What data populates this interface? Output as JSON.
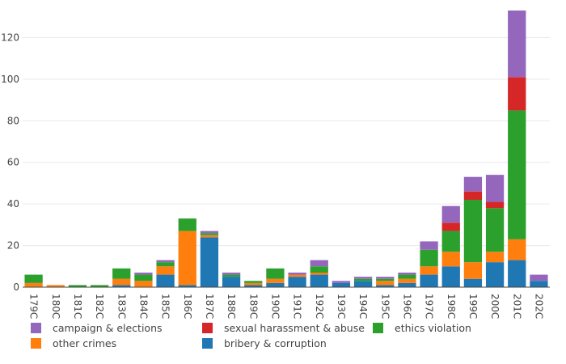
{
  "chart_data": {
    "type": "bar",
    "stacked": true,
    "title": "",
    "xlabel": "",
    "ylabel": "",
    "ylim": [
      0,
      140
    ],
    "yticks": [
      0,
      20,
      40,
      60,
      80,
      100,
      120,
      140
    ],
    "grid": true,
    "legend_position": "bottom",
    "categories": [
      "1790s",
      "1800s",
      "1810s",
      "1820s",
      "1830s",
      "1840s",
      "1850s",
      "1860s",
      "1870s",
      "1880s",
      "1890s",
      "1900s",
      "1910s",
      "1920s",
      "1930s",
      "1940s",
      "1950s",
      "1960s",
      "1970s",
      "1980s",
      "1990s",
      "2000s",
      "2010s",
      "2020s"
    ],
    "tick_labels": [
      "179C",
      "180C",
      "181C",
      "182C",
      "183C",
      "184C",
      "185C",
      "186C",
      "187C",
      "188C",
      "189C",
      "190C",
      "191C",
      "192C",
      "193C",
      "194C",
      "195C",
      "196C",
      "197C",
      "198C",
      "199C",
      "200C",
      "201C",
      "202C"
    ],
    "series": [
      {
        "name": "bribery & corruption",
        "color": "#1f77b4",
        "values": [
          0,
          0,
          0,
          0,
          1,
          0,
          6,
          1,
          24,
          5,
          1,
          2,
          5,
          6,
          2,
          3,
          1,
          2,
          6,
          10,
          4,
          12,
          13,
          3
        ]
      },
      {
        "name": "other crimes",
        "color": "#ff7f0e",
        "values": [
          2,
          1,
          0,
          0,
          3,
          3,
          4,
          26,
          1,
          0,
          1,
          2,
          1,
          1,
          0,
          0,
          2,
          2,
          4,
          7,
          8,
          5,
          10,
          0
        ]
      },
      {
        "name": "ethics violation",
        "color": "#2ca02c",
        "values": [
          4,
          0,
          1,
          1,
          5,
          3,
          2,
          6,
          1,
          1,
          1,
          5,
          0,
          3,
          0,
          1,
          1,
          2,
          8,
          10,
          30,
          21,
          62,
          0
        ]
      },
      {
        "name": "sexual harassment & abuse",
        "color": "#d62728",
        "values": [
          0,
          0,
          0,
          0,
          0,
          0,
          0,
          0,
          0,
          0,
          0,
          0,
          0,
          0,
          0,
          0,
          0,
          0,
          0,
          4,
          4,
          3,
          16,
          0
        ]
      },
      {
        "name": "campaign & elections",
        "color": "#9467bd",
        "values": [
          0,
          0,
          0,
          0,
          0,
          1,
          1,
          0,
          1,
          1,
          0,
          0,
          1,
          3,
          1,
          1,
          1,
          1,
          4,
          8,
          7,
          13,
          32,
          3
        ]
      }
    ]
  },
  "legend": [
    {
      "label": "campaign & elections",
      "color": "#9467bd"
    },
    {
      "label": "sexual harassment & abuse",
      "color": "#d62728"
    },
    {
      "label": "ethics violation",
      "color": "#2ca02c"
    },
    {
      "label": "other crimes",
      "color": "#ff7f0e"
    },
    {
      "label": "bribery & corruption",
      "color": "#1f77b4"
    }
  ]
}
